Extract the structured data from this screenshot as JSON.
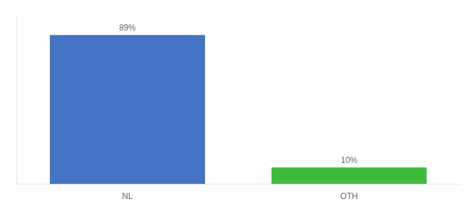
{
  "chart_data": {
    "type": "bar",
    "categories": [
      "NL",
      "OTH"
    ],
    "values": [
      89,
      10
    ],
    "value_labels": [
      "89%",
      "10%"
    ],
    "colors": [
      "#4472c4",
      "#3dbb3d"
    ],
    "ylim": [
      0,
      100
    ],
    "data_labels": true,
    "tick_labels": "x",
    "grid": false
  }
}
